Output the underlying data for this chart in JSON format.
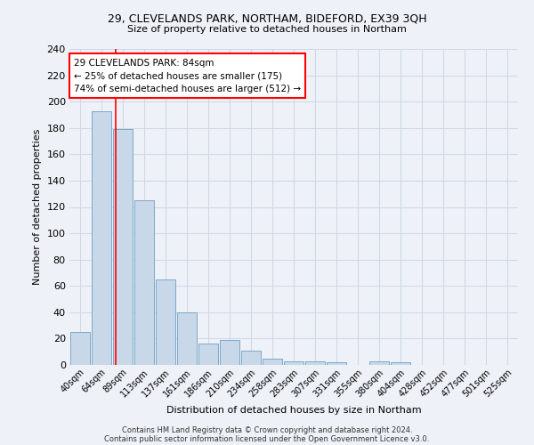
{
  "title1": "29, CLEVELANDS PARK, NORTHAM, BIDEFORD, EX39 3QH",
  "title2": "Size of property relative to detached houses in Northam",
  "xlabel": "Distribution of detached houses by size in Northam",
  "ylabel": "Number of detached properties",
  "bar_labels": [
    "40sqm",
    "64sqm",
    "89sqm",
    "113sqm",
    "137sqm",
    "161sqm",
    "186sqm",
    "210sqm",
    "234sqm",
    "258sqm",
    "283sqm",
    "307sqm",
    "331sqm",
    "355sqm",
    "380sqm",
    "404sqm",
    "428sqm",
    "452sqm",
    "477sqm",
    "501sqm",
    "525sqm"
  ],
  "bar_values": [
    25,
    193,
    179,
    125,
    65,
    40,
    16,
    19,
    11,
    5,
    3,
    3,
    2,
    0,
    3,
    2,
    0,
    0,
    0,
    0,
    0
  ],
  "bar_color": "#c8d8e8",
  "bar_edgecolor": "#7aaac8",
  "vline_position": 1.65,
  "annotation_text": "29 CLEVELANDS PARK: 84sqm\n← 25% of detached houses are smaller (175)\n74% of semi-detached houses are larger (512) →",
  "annotation_box_color": "white",
  "annotation_box_edgecolor": "red",
  "vline_color": "red",
  "ylim": [
    0,
    240
  ],
  "yticks": [
    0,
    20,
    40,
    60,
    80,
    100,
    120,
    140,
    160,
    180,
    200,
    220,
    240
  ],
  "grid_color": "#d0d8e8",
  "bg_color": "#eef2f8",
  "footnote1": "Contains HM Land Registry data © Crown copyright and database right 2024.",
  "footnote2": "Contains public sector information licensed under the Open Government Licence v3.0."
}
